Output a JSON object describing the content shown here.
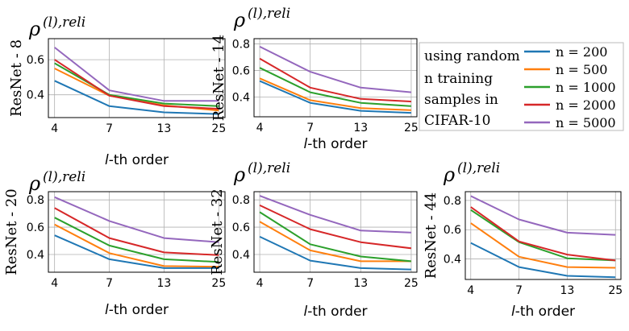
{
  "chart_data": [
    {
      "type": "line",
      "title": "ρ",
      "title_sup": "(l),reli",
      "ylabel": "ResNet - 8",
      "xlabel": "l-th order",
      "xlabel_italic": "l",
      "xlabel_rest": "-th order",
      "x": [
        4,
        7,
        13,
        25
      ],
      "x_ticks": [
        "4",
        "7",
        "13",
        "25"
      ],
      "y_ticks": [
        "0.4",
        "0.6"
      ],
      "ylim": [
        0.27,
        0.72
      ],
      "series": [
        {
          "name": "n = 200",
          "values": [
            0.48,
            0.335,
            0.3,
            0.29
          ]
        },
        {
          "name": "n = 500",
          "values": [
            0.55,
            0.395,
            0.34,
            0.31
          ]
        },
        {
          "name": "n = 1000",
          "values": [
            0.58,
            0.4,
            0.35,
            0.335
          ]
        },
        {
          "name": "n = 2000",
          "values": [
            0.6,
            0.395,
            0.335,
            0.32
          ]
        },
        {
          "name": "n = 5000",
          "values": [
            0.67,
            0.425,
            0.365,
            0.365
          ]
        }
      ]
    },
    {
      "type": "line",
      "title": "ρ",
      "title_sup": "(l),reli",
      "ylabel": "ResNet - 14",
      "xlabel": "l-th order",
      "xlabel_italic": "l",
      "xlabel_rest": "-th order",
      "x": [
        4,
        7,
        13,
        25
      ],
      "x_ticks": [
        "4",
        "7",
        "13",
        "25"
      ],
      "y_ticks": [
        "0.4",
        "0.6",
        "0.8"
      ],
      "ylim": [
        0.25,
        0.84
      ],
      "series": [
        {
          "name": "n = 200",
          "values": [
            0.52,
            0.355,
            0.295,
            0.28
          ]
        },
        {
          "name": "n = 500",
          "values": [
            0.54,
            0.375,
            0.315,
            0.3
          ]
        },
        {
          "name": "n = 1000",
          "values": [
            0.62,
            0.435,
            0.355,
            0.33
          ]
        },
        {
          "name": "n = 2000",
          "values": [
            0.69,
            0.47,
            0.385,
            0.365
          ]
        },
        {
          "name": "n = 5000",
          "values": [
            0.78,
            0.59,
            0.47,
            0.435
          ]
        }
      ]
    },
    {
      "type": "line",
      "title": "ρ",
      "title_sup": "(l),reli",
      "ylabel": "ResNet - 20",
      "xlabel": "l-th order",
      "xlabel_italic": "l",
      "xlabel_rest": "-th order",
      "x": [
        4,
        7,
        13,
        25
      ],
      "x_ticks": [
        "4",
        "7",
        "13",
        "25"
      ],
      "y_ticks": [
        "0.4",
        "0.6",
        "0.8"
      ],
      "ylim": [
        0.27,
        0.86
      ],
      "series": [
        {
          "name": "n = 200",
          "values": [
            0.54,
            0.365,
            0.3,
            0.3
          ]
        },
        {
          "name": "n = 500",
          "values": [
            0.62,
            0.41,
            0.315,
            0.31
          ]
        },
        {
          "name": "n = 1000",
          "values": [
            0.67,
            0.465,
            0.365,
            0.345
          ]
        },
        {
          "name": "n = 2000",
          "values": [
            0.74,
            0.52,
            0.415,
            0.395
          ]
        },
        {
          "name": "n = 5000",
          "values": [
            0.82,
            0.645,
            0.52,
            0.49
          ]
        }
      ]
    },
    {
      "type": "line",
      "title": "ρ",
      "title_sup": "(l),reli",
      "ylabel": "ResNet - 32",
      "xlabel": "l-th order",
      "xlabel_italic": "l",
      "xlabel_rest": "-th order",
      "x": [
        4,
        7,
        13,
        25
      ],
      "x_ticks": [
        "4",
        "7",
        "13",
        "25"
      ],
      "y_ticks": [
        "0.4",
        "0.6",
        "0.8"
      ],
      "ylim": [
        0.27,
        0.86
      ],
      "series": [
        {
          "name": "n = 200",
          "values": [
            0.53,
            0.355,
            0.3,
            0.29
          ]
        },
        {
          "name": "n = 500",
          "values": [
            0.64,
            0.43,
            0.35,
            0.35
          ]
        },
        {
          "name": "n = 1000",
          "values": [
            0.71,
            0.475,
            0.385,
            0.35
          ]
        },
        {
          "name": "n = 2000",
          "values": [
            0.76,
            0.585,
            0.49,
            0.445
          ]
        },
        {
          "name": "n = 5000",
          "values": [
            0.83,
            0.69,
            0.575,
            0.56
          ]
        }
      ]
    },
    {
      "type": "line",
      "title": "ρ",
      "title_sup": "(l),reli",
      "ylabel": "ResNet - 44",
      "xlabel": "l-th order",
      "xlabel_italic": "l",
      "xlabel_rest": "-th order",
      "x": [
        4,
        7,
        13,
        25
      ],
      "x_ticks": [
        "4",
        "7",
        "13",
        "25"
      ],
      "y_ticks": [
        "0.4",
        "0.6",
        "0.8"
      ],
      "ylim": [
        0.26,
        0.86
      ],
      "series": [
        {
          "name": "n = 200",
          "values": [
            0.51,
            0.345,
            0.285,
            0.275
          ]
        },
        {
          "name": "n = 500",
          "values": [
            0.645,
            0.415,
            0.345,
            0.34
          ]
        },
        {
          "name": "n = 1000",
          "values": [
            0.735,
            0.515,
            0.405,
            0.39
          ]
        },
        {
          "name": "n = 2000",
          "values": [
            0.755,
            0.52,
            0.43,
            0.39
          ]
        },
        {
          "name": "n = 5000",
          "values": [
            0.83,
            0.67,
            0.58,
            0.565
          ]
        }
      ]
    }
  ],
  "legend": {
    "description_lines": [
      "using random",
      "n training",
      "samples in",
      "CIFAR-10"
    ],
    "entries": [
      "n = 200",
      "n = 500",
      "n = 1000",
      "n = 2000",
      "n = 5000"
    ],
    "placement": "top-right"
  },
  "colors": {
    "n = 200": "#1f77b4",
    "n = 500": "#ff7f0e",
    "n = 1000": "#2ca02c",
    "n = 2000": "#d62728",
    "n = 5000": "#9467bd",
    "axis": "#000000",
    "grid": "#b0b0b0",
    "legend_border": "#bbbbbb"
  }
}
